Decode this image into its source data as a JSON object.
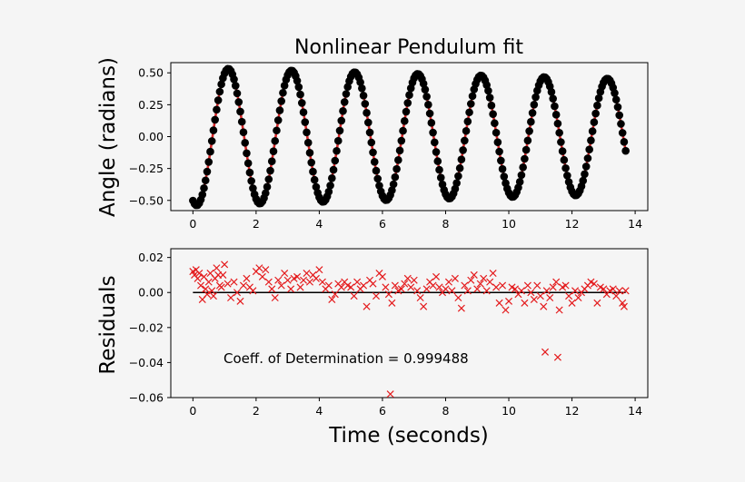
{
  "chart_data": [
    {
      "type": "scatter",
      "title": "Nonlinear Pendulum fit",
      "xlabel": "",
      "ylabel": "Angle (radians)",
      "xlim": [
        -0.7,
        14.4
      ],
      "ylim": [
        -0.58,
        0.58
      ],
      "x_ticks": [
        0,
        2,
        4,
        6,
        8,
        10,
        12,
        14
      ],
      "y_ticks": [
        -0.5,
        -0.25,
        0.0,
        0.25,
        0.5
      ],
      "x_tick_labels": [
        "0",
        "2",
        "4",
        "6",
        "8",
        "10",
        "12",
        "14"
      ],
      "y_tick_labels": [
        "−0.50",
        "−0.25",
        "0.00",
        "0.25",
        "0.50"
      ],
      "grid": false,
      "colors": {
        "data": "#000000",
        "fit": "#d62728",
        "frame": "#000000"
      },
      "series": [
        {
          "kind": "data",
          "marker": "circle",
          "model": {
            "t_start": 0,
            "t_end": 13.7,
            "t_step": 0.05,
            "amplitude0": 0.54,
            "decay_per_s": 0.013,
            "period_s": 2.0,
            "phase_rad": 1.95
          }
        },
        {
          "kind": "fit",
          "marker": "line",
          "model": {
            "t_start": 0,
            "t_end": 13.7,
            "t_step": 0.02,
            "amplitude0": 0.54,
            "decay_per_s": 0.013,
            "period_s": 2.0,
            "phase_rad": 1.95
          }
        }
      ]
    },
    {
      "type": "scatter",
      "title": "",
      "xlabel": "Time (seconds)",
      "ylabel": "Residuals",
      "xlim": [
        -0.7,
        14.4
      ],
      "ylim": [
        -0.06,
        0.025
      ],
      "x_ticks": [
        0,
        2,
        4,
        6,
        8,
        10,
        12,
        14
      ],
      "y_ticks": [
        -0.06,
        -0.04,
        -0.02,
        0.0,
        0.02
      ],
      "x_tick_labels": [
        "0",
        "2",
        "4",
        "6",
        "8",
        "10",
        "12",
        "14"
      ],
      "y_tick_labels": [
        "−0.06",
        "−0.04",
        "−0.02",
        "0.00",
        "0.02"
      ],
      "grid": false,
      "annotation": "Coeff. of Determination = 0.999488",
      "zero_line": {
        "x": [
          0,
          13.7
        ],
        "y": 0
      },
      "colors": {
        "marker": "#e41a1c",
        "zero_line": "#000000"
      },
      "points": [
        [
          0.0,
          0.012
        ],
        [
          0.05,
          0.01
        ],
        [
          0.1,
          0.013
        ],
        [
          0.15,
          0.008
        ],
        [
          0.2,
          0.011
        ],
        [
          0.25,
          0.004
        ],
        [
          0.3,
          -0.004
        ],
        [
          0.35,
          0.009
        ],
        [
          0.4,
          0.002
        ],
        [
          0.45,
          -0.001
        ],
        [
          0.5,
          0.006
        ],
        [
          0.55,
          0.011
        ],
        [
          0.6,
          0.001
        ],
        [
          0.65,
          -0.002
        ],
        [
          0.7,
          0.008
        ],
        [
          0.75,
          0.014
        ],
        [
          0.8,
          0.01
        ],
        [
          0.85,
          0.004
        ],
        [
          0.9,
          0.003
        ],
        [
          0.95,
          0.01
        ],
        [
          1.0,
          0.016
        ],
        [
          1.1,
          0.005
        ],
        [
          1.2,
          -0.003
        ],
        [
          1.3,
          0.006
        ],
        [
          1.4,
          0.0
        ],
        [
          1.5,
          -0.005
        ],
        [
          1.6,
          0.004
        ],
        [
          1.7,
          0.008
        ],
        [
          1.8,
          0.003
        ],
        [
          1.9,
          0.001
        ],
        [
          2.0,
          0.012
        ],
        [
          2.1,
          0.014
        ],
        [
          2.2,
          0.009
        ],
        [
          2.3,
          0.013
        ],
        [
          2.4,
          0.006
        ],
        [
          2.5,
          0.002
        ],
        [
          2.6,
          -0.003
        ],
        [
          2.7,
          0.007
        ],
        [
          2.8,
          0.004
        ],
        [
          2.9,
          0.011
        ],
        [
          3.0,
          0.007
        ],
        [
          3.1,
          0.002
        ],
        [
          3.2,
          0.008
        ],
        [
          3.3,
          0.009
        ],
        [
          3.4,
          0.003
        ],
        [
          3.5,
          0.007
        ],
        [
          3.6,
          0.011
        ],
        [
          3.7,
          0.006
        ],
        [
          3.8,
          0.01
        ],
        [
          3.9,
          0.008
        ],
        [
          4.0,
          0.013
        ],
        [
          4.1,
          0.006
        ],
        [
          4.2,
          0.002
        ],
        [
          4.3,
          0.004
        ],
        [
          4.4,
          -0.004
        ],
        [
          4.5,
          -0.001
        ],
        [
          4.6,
          0.005
        ],
        [
          4.7,
          0.003
        ],
        [
          4.8,
          0.006
        ],
        [
          4.9,
          0.004
        ],
        [
          5.0,
          0.003
        ],
        [
          5.1,
          -0.002
        ],
        [
          5.2,
          0.006
        ],
        [
          5.3,
          0.002
        ],
        [
          5.4,
          0.004
        ],
        [
          5.5,
          -0.008
        ],
        [
          5.6,
          0.007
        ],
        [
          5.7,
          0.005
        ],
        [
          5.8,
          -0.002
        ],
        [
          5.9,
          0.011
        ],
        [
          6.0,
          0.009
        ],
        [
          6.1,
          0.003
        ],
        [
          6.2,
          -0.001
        ],
        [
          6.25,
          -0.058
        ],
        [
          6.3,
          -0.006
        ],
        [
          6.4,
          0.004
        ],
        [
          6.5,
          0.001
        ],
        [
          6.6,
          0.002
        ],
        [
          6.7,
          0.005
        ],
        [
          6.8,
          0.008
        ],
        [
          6.9,
          0.003
        ],
        [
          7.0,
          0.007
        ],
        [
          7.1,
          0.001
        ],
        [
          7.2,
          -0.003
        ],
        [
          7.3,
          -0.008
        ],
        [
          7.4,
          0.002
        ],
        [
          7.5,
          0.006
        ],
        [
          7.6,
          0.004
        ],
        [
          7.7,
          0.009
        ],
        [
          7.8,
          0.003
        ],
        [
          7.9,
          0.0
        ],
        [
          8.0,
          0.002
        ],
        [
          8.1,
          0.006
        ],
        [
          8.2,
          0.001
        ],
        [
          8.3,
          0.008
        ],
        [
          8.4,
          -0.003
        ],
        [
          8.5,
          -0.009
        ],
        [
          8.6,
          0.004
        ],
        [
          8.7,
          0.001
        ],
        [
          8.8,
          0.007
        ],
        [
          8.9,
          0.01
        ],
        [
          9.0,
          0.002
        ],
        [
          9.1,
          0.005
        ],
        [
          9.2,
          0.008
        ],
        [
          9.3,
          0.001
        ],
        [
          9.4,
          0.006
        ],
        [
          9.5,
          0.011
        ],
        [
          9.6,
          0.003
        ],
        [
          9.7,
          -0.006
        ],
        [
          9.8,
          0.004
        ],
        [
          9.9,
          -0.01
        ],
        [
          10.0,
          -0.005
        ],
        [
          10.1,
          0.003
        ],
        [
          10.2,
          0.002
        ],
        [
          10.3,
          -0.001
        ],
        [
          10.4,
          0.001
        ],
        [
          10.5,
          -0.006
        ],
        [
          10.6,
          0.004
        ],
        [
          10.7,
          0.0
        ],
        [
          10.8,
          -0.004
        ],
        [
          10.9,
          0.004
        ],
        [
          11.0,
          -0.002
        ],
        [
          11.1,
          -0.008
        ],
        [
          11.15,
          -0.034
        ],
        [
          11.2,
          0.001
        ],
        [
          11.3,
          -0.003
        ],
        [
          11.4,
          0.003
        ],
        [
          11.5,
          0.006
        ],
        [
          11.55,
          -0.037
        ],
        [
          11.6,
          -0.01
        ],
        [
          11.7,
          0.003
        ],
        [
          11.8,
          0.004
        ],
        [
          11.9,
          -0.002
        ],
        [
          12.0,
          -0.006
        ],
        [
          12.1,
          0.001
        ],
        [
          12.2,
          -0.003
        ],
        [
          12.3,
          0.0
        ],
        [
          12.4,
          0.002
        ],
        [
          12.5,
          0.004
        ],
        [
          12.6,
          0.006
        ],
        [
          12.7,
          0.005
        ],
        [
          12.8,
          -0.006
        ],
        [
          12.9,
          0.003
        ],
        [
          13.0,
          0.002
        ],
        [
          13.1,
          -0.001
        ],
        [
          13.2,
          0.001
        ],
        [
          13.3,
          0.002
        ],
        [
          13.4,
          -0.002
        ],
        [
          13.5,
          0.001
        ],
        [
          13.6,
          -0.006
        ],
        [
          13.65,
          -0.008
        ],
        [
          13.7,
          0.001
        ]
      ]
    }
  ]
}
